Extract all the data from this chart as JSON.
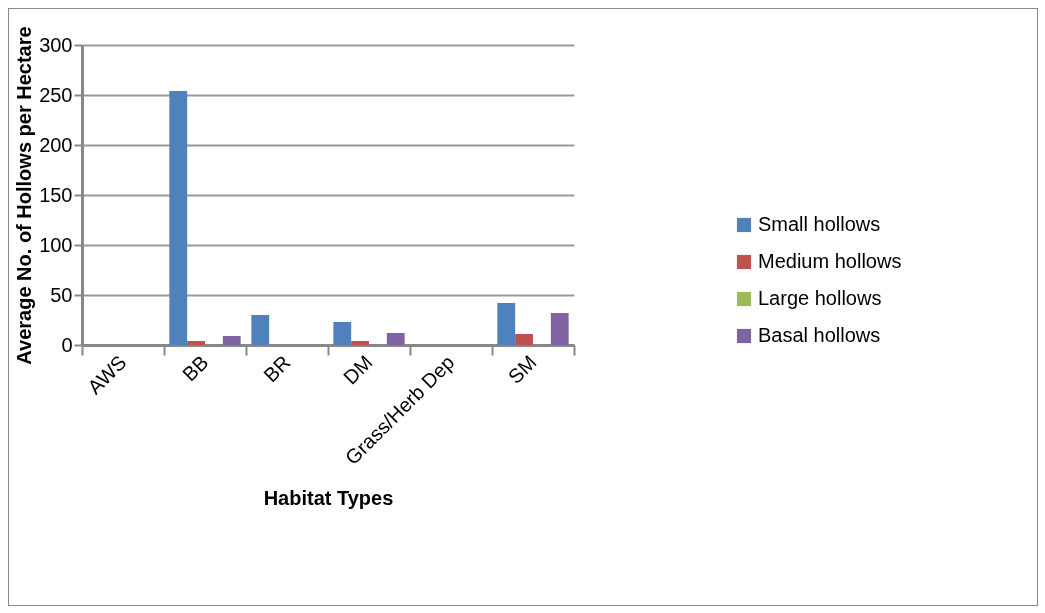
{
  "chart_data": {
    "type": "bar",
    "xlabel": "Habitat Types",
    "ylabel": "Average No. of Hollows per Hectare",
    "categories": [
      "AWS",
      "BB",
      "BR",
      "DM",
      "Grass/Herb Dep",
      "SM"
    ],
    "series": [
      {
        "name": "Small hollows",
        "color": "#4f81bd",
        "values": [
          0,
          254,
          30,
          23,
          0,
          42
        ]
      },
      {
        "name": "Medium hollows",
        "color": "#c0504d",
        "values": [
          0,
          4,
          0,
          4,
          0,
          11
        ]
      },
      {
        "name": "Large hollows",
        "color": "#9bbb59",
        "values": [
          0,
          0,
          0,
          0,
          0,
          0
        ]
      },
      {
        "name": "Basal hollows",
        "color": "#8064a2",
        "values": [
          0,
          9,
          0,
          12,
          0,
          32
        ]
      }
    ],
    "ylim": [
      0,
      300
    ],
    "yticks": [
      0,
      50,
      100,
      150,
      200,
      250,
      300
    ],
    "grid": "y",
    "legend": "right"
  }
}
